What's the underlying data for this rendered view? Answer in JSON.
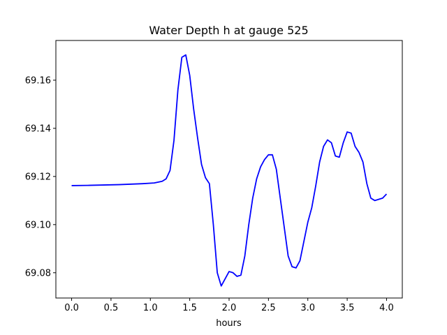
{
  "chart_data": {
    "type": "line",
    "title": "Water Depth h at gauge 525",
    "xlabel": "hours",
    "ylabel": "",
    "xlim": [
      -0.2,
      4.2
    ],
    "ylim": [
      69.0695,
      69.1765
    ],
    "grid": false,
    "x_ticks": [
      0.0,
      0.5,
      1.0,
      1.5,
      2.0,
      2.5,
      3.0,
      3.5,
      4.0
    ],
    "x_tick_labels": [
      "0.0",
      "0.5",
      "1.0",
      "1.5",
      "2.0",
      "2.5",
      "3.0",
      "3.5",
      "4.0"
    ],
    "y_ticks": [
      69.08,
      69.1,
      69.12,
      69.14,
      69.16
    ],
    "y_tick_labels": [
      "69.08",
      "69.10",
      "69.12",
      "69.14",
      "69.16"
    ],
    "series": [
      {
        "color": "#0000ff",
        "x": [
          0.0,
          0.2,
          0.6,
          0.9,
          1.05,
          1.15,
          1.2,
          1.25,
          1.3,
          1.35,
          1.4,
          1.45,
          1.5,
          1.55,
          1.6,
          1.65,
          1.7,
          1.75,
          1.8,
          1.85,
          1.9,
          1.95,
          2.0,
          2.05,
          2.1,
          2.15,
          2.2,
          2.25,
          2.3,
          2.35,
          2.4,
          2.45,
          2.5,
          2.55,
          2.6,
          2.65,
          2.7,
          2.75,
          2.8,
          2.85,
          2.9,
          2.95,
          3.0,
          3.05,
          3.1,
          3.15,
          3.2,
          3.25,
          3.3,
          3.35,
          3.4,
          3.45,
          3.5,
          3.55,
          3.6,
          3.65,
          3.7,
          3.75,
          3.8,
          3.85,
          3.9,
          3.95,
          4.0
        ],
        "values": [
          69.1162,
          69.1163,
          69.1166,
          69.117,
          69.1173,
          69.118,
          69.119,
          69.1225,
          69.135,
          69.156,
          69.1695,
          69.1705,
          69.162,
          69.148,
          69.136,
          69.125,
          69.1195,
          69.117,
          69.1,
          69.08,
          69.0745,
          69.0775,
          69.0805,
          69.08,
          69.0785,
          69.079,
          69.087,
          69.1,
          69.111,
          69.119,
          69.124,
          69.127,
          69.129,
          69.129,
          69.123,
          69.111,
          69.099,
          69.087,
          69.0825,
          69.082,
          69.085,
          69.093,
          69.101,
          69.107,
          69.116,
          69.126,
          69.1325,
          69.1352,
          69.134,
          69.1285,
          69.128,
          69.134,
          69.1385,
          69.138,
          69.1325,
          69.13,
          69.126,
          69.117,
          69.111,
          69.11,
          69.1105,
          69.111,
          69.1127
        ]
      }
    ]
  }
}
